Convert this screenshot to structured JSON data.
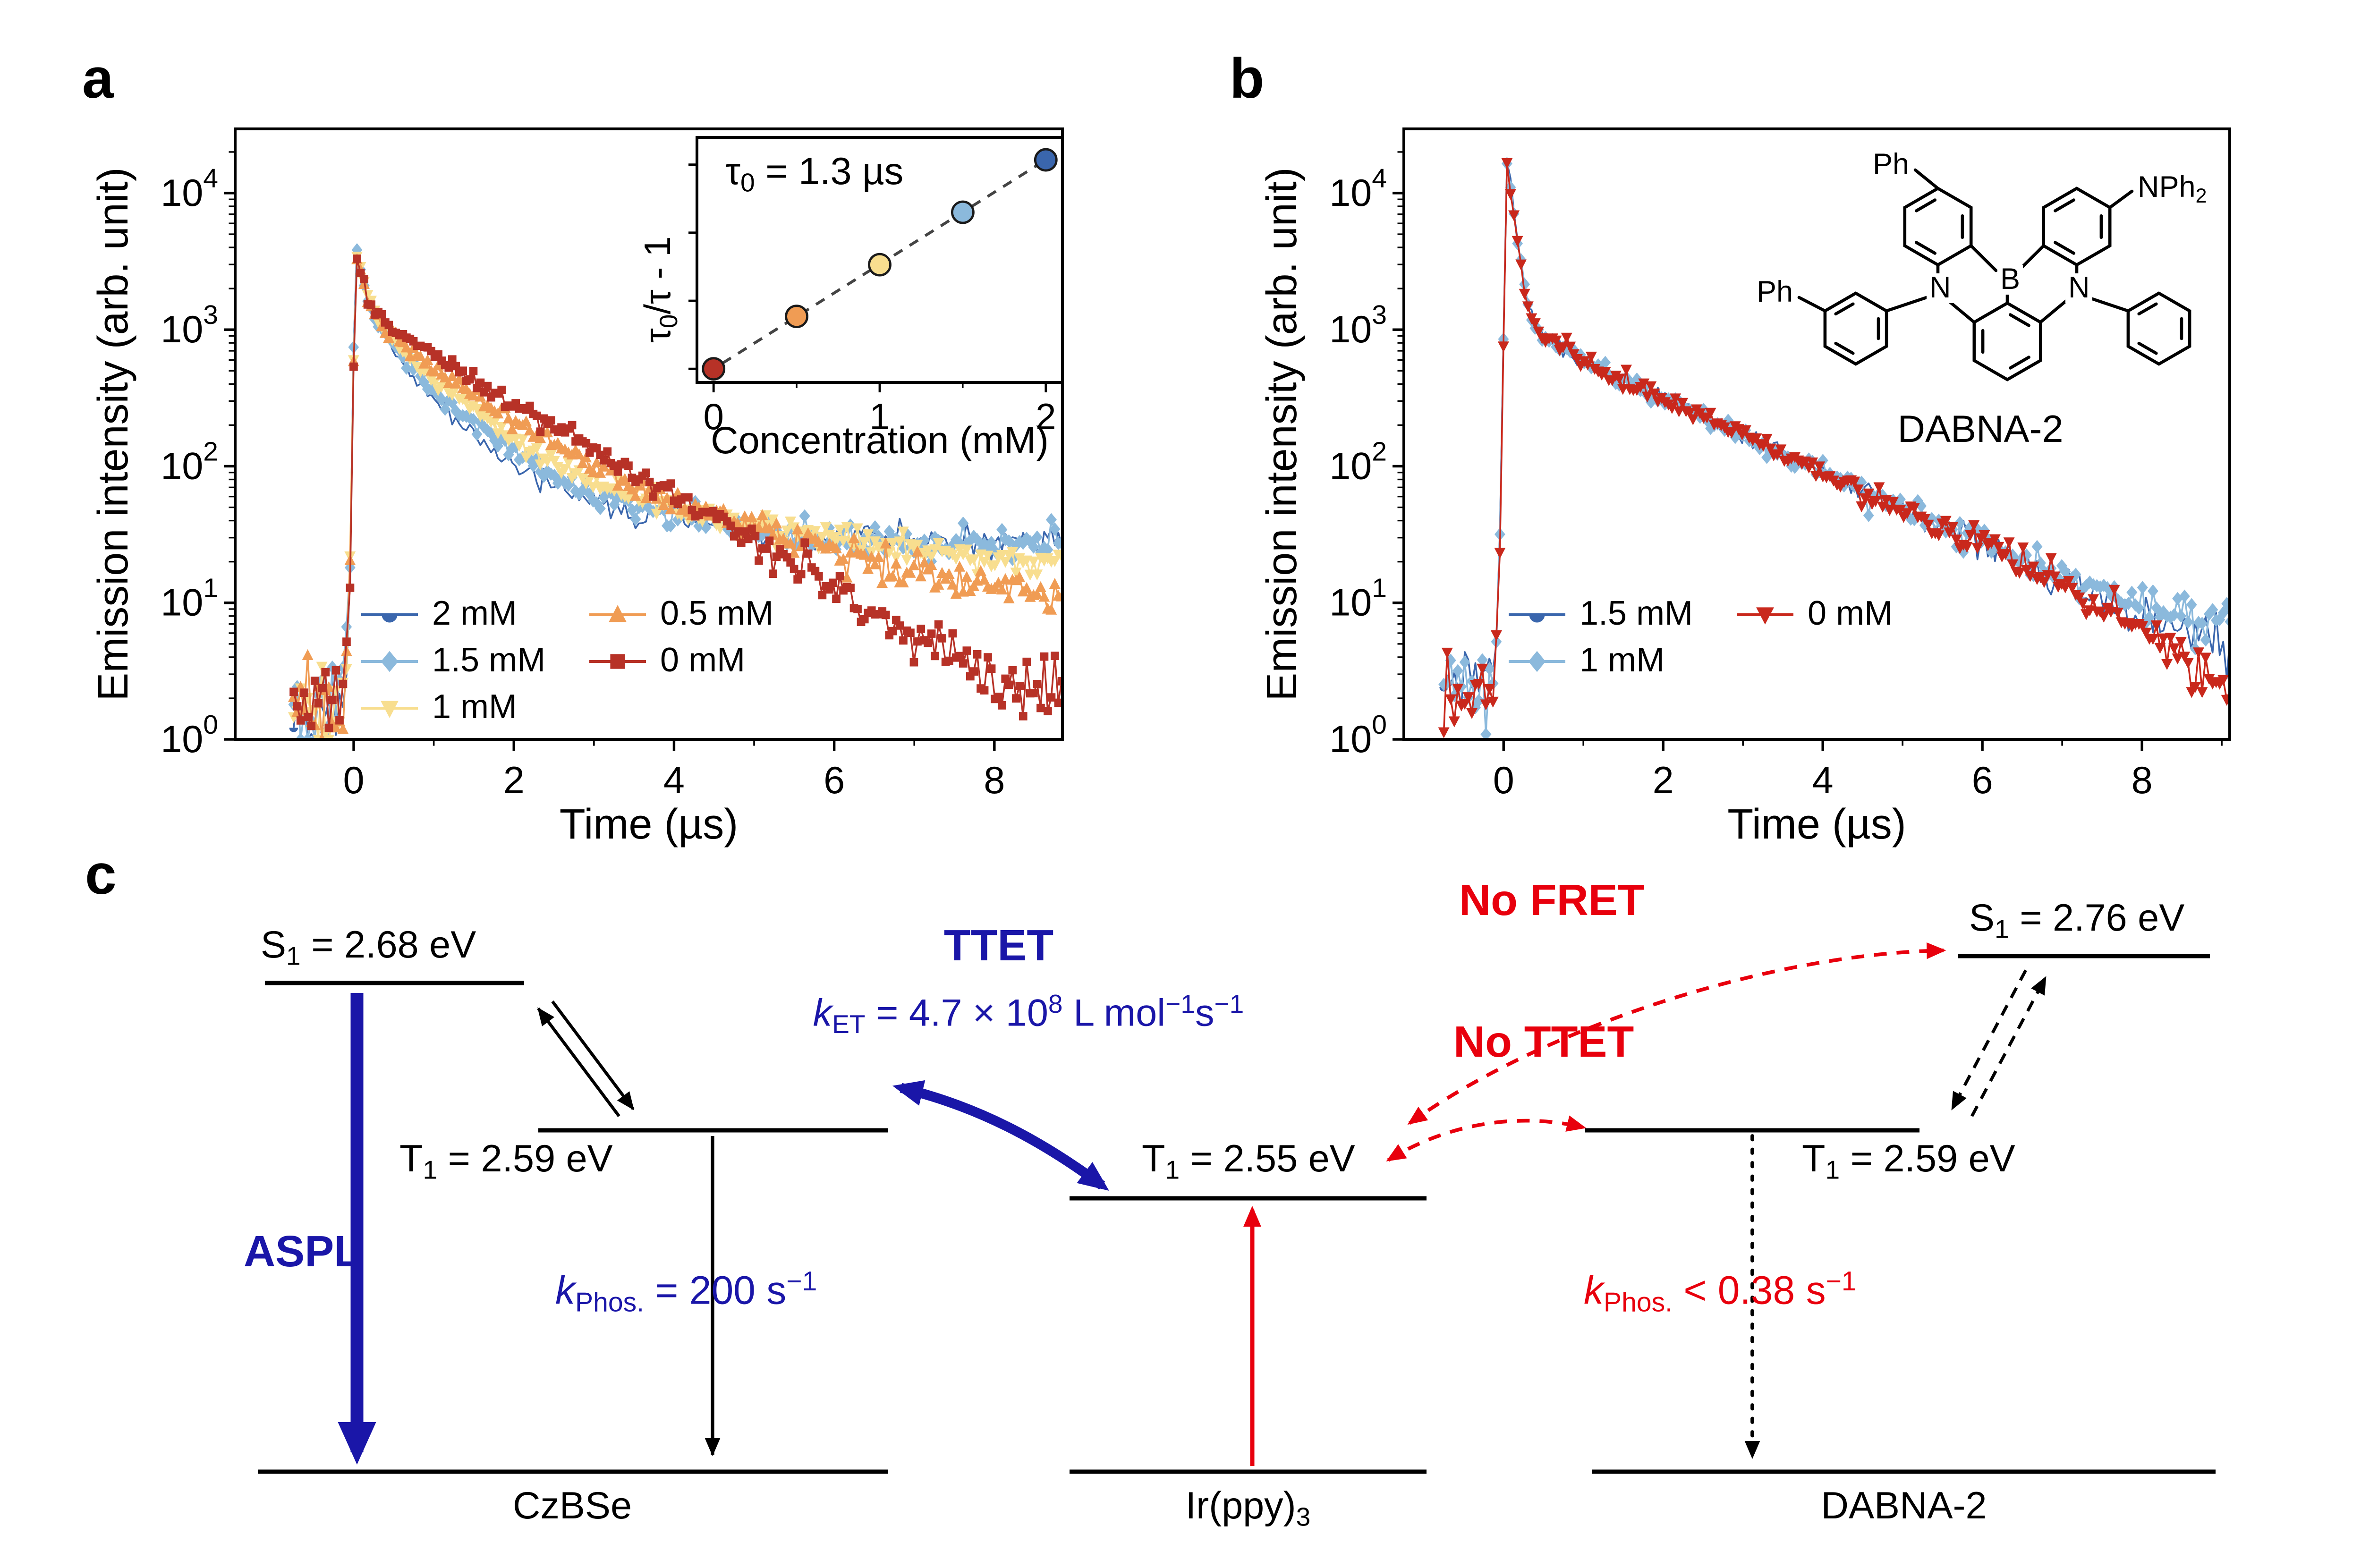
{
  "panels": {
    "a": "a",
    "b": "b",
    "c": "c"
  },
  "colors": {
    "navy": "#1A16A8",
    "red": "#E8000D",
    "blue": "#3A66AD",
    "light_blue": "#8BB9DC",
    "pale_yellow": "#F8DE8F",
    "orange": "#F09C54",
    "dark_red": "#B73227",
    "bright_red": "#C9281C",
    "black": "#000000"
  },
  "chart_data": [
    {
      "id": "chart-a",
      "panel": "a",
      "type": "decay",
      "xlabel": "Time (µs)",
      "ylabel": "Emission intensity (arb. unit)",
      "xticks": [
        0,
        2,
        4,
        6,
        8
      ],
      "xminor": [
        1,
        3,
        5,
        7,
        9
      ],
      "xlim": [
        -1.48,
        8.85
      ],
      "yscale": "log",
      "ylim_exp": [
        0,
        4.47
      ],
      "ytick_exponents": [
        0,
        1,
        2,
        3,
        4
      ],
      "legend_columns": [
        [
          0,
          1,
          2
        ],
        [
          3,
          4
        ]
      ],
      "series": [
        {
          "name": "2 mM",
          "color": "#3A66AD",
          "marker": "circle",
          "anchors": [
            [
              -0.75,
              1.8
            ],
            [
              -0.12,
              1.8
            ],
            [
              -0.05,
              12
            ],
            [
              0.02,
              4800
            ],
            [
              0.1,
              2500
            ],
            [
              0.2,
              1500
            ],
            [
              0.3,
              1080
            ],
            [
              0.5,
              700
            ],
            [
              0.7,
              480
            ],
            [
              1,
              300
            ],
            [
              1.5,
              165
            ],
            [
              2,
              100
            ],
            [
              2.5,
              72
            ],
            [
              3,
              55
            ],
            [
              3.5,
              47
            ],
            [
              4,
              42
            ],
            [
              4.5,
              38
            ],
            [
              5,
              34
            ],
            [
              6,
              30
            ],
            [
              7,
              29
            ],
            [
              8,
              28
            ],
            [
              9,
              29
            ],
            [
              9.22,
              30
            ],
            [
              9.3,
              1.5
            ]
          ]
        },
        {
          "name": "1.5 mM",
          "color": "#8BB9DC",
          "marker": "diamond",
          "anchors": [
            [
              -0.75,
              1.7
            ],
            [
              -0.12,
              1.7
            ],
            [
              -0.05,
              12
            ],
            [
              0.02,
              4500
            ],
            [
              0.1,
              2450
            ],
            [
              0.2,
              1520
            ],
            [
              0.3,
              1120
            ],
            [
              0.5,
              760
            ],
            [
              0.7,
              560
            ],
            [
              1,
              350
            ],
            [
              1.5,
              200
            ],
            [
              2,
              125
            ],
            [
              2.5,
              85
            ],
            [
              3,
              63
            ],
            [
              3.5,
              53
            ],
            [
              4,
              45
            ],
            [
              4.5,
              39
            ],
            [
              5,
              35
            ],
            [
              6,
              30
            ],
            [
              7,
              27
            ],
            [
              8,
              26
            ],
            [
              9,
              26
            ],
            [
              9.22,
              27
            ],
            [
              9.3,
              1.4
            ]
          ]
        },
        {
          "name": "1 mM",
          "color": "#F8DE8F",
          "marker": "triangle-down",
          "anchors": [
            [
              -0.75,
              1.7
            ],
            [
              -0.12,
              1.7
            ],
            [
              -0.05,
              12
            ],
            [
              0.02,
              4300
            ],
            [
              0.1,
              2400
            ],
            [
              0.2,
              1550
            ],
            [
              0.3,
              1160
            ],
            [
              0.5,
              820
            ],
            [
              0.7,
              640
            ],
            [
              1,
              430
            ],
            [
              1.5,
              260
            ],
            [
              2,
              160
            ],
            [
              2.5,
              105
            ],
            [
              3,
              76
            ],
            [
              3.5,
              61
            ],
            [
              4,
              50
            ],
            [
              4.5,
              42
            ],
            [
              5,
              36
            ],
            [
              6,
              29
            ],
            [
              7,
              25
            ],
            [
              8,
              22
            ],
            [
              9,
              21
            ],
            [
              9.22,
              21
            ],
            [
              9.3,
              1.4
            ]
          ]
        },
        {
          "name": "0.5 mM",
          "color": "#F09C54",
          "marker": "triangle-up",
          "anchors": [
            [
              -0.75,
              1.6
            ],
            [
              -0.12,
              1.6
            ],
            [
              -0.05,
              11
            ],
            [
              0.02,
              3900
            ],
            [
              0.1,
              2350
            ],
            [
              0.2,
              1580
            ],
            [
              0.3,
              1220
            ],
            [
              0.5,
              900
            ],
            [
              0.7,
              730
            ],
            [
              1,
              520
            ],
            [
              1.5,
              330
            ],
            [
              2,
              215
            ],
            [
              2.5,
              145
            ],
            [
              3,
              102
            ],
            [
              3.5,
              76
            ],
            [
              4,
              57
            ],
            [
              4.5,
              44
            ],
            [
              5,
              34
            ],
            [
              5.5,
              28
            ],
            [
              6,
              23
            ],
            [
              7,
              17
            ],
            [
              8,
              13
            ],
            [
              9,
              11
            ],
            [
              9.22,
              11
            ],
            [
              9.3,
              1.3
            ]
          ]
        },
        {
          "name": "0 mM",
          "color": "#B73227",
          "marker": "square",
          "anchors": [
            [
              -0.75,
              1.6
            ],
            [
              -0.12,
              1.6
            ],
            [
              -0.05,
              11
            ],
            [
              0.02,
              3300
            ],
            [
              0.1,
              2250
            ],
            [
              0.2,
              1600
            ],
            [
              0.3,
              1300
            ],
            [
              0.5,
              1020
            ],
            [
              0.7,
              850
            ],
            [
              1,
              660
            ],
            [
              1.5,
              430
            ],
            [
              2,
              290
            ],
            [
              2.5,
              195
            ],
            [
              3,
              130
            ],
            [
              3.5,
              88
            ],
            [
              4,
              60
            ],
            [
              4.5,
              41
            ],
            [
              5,
              28
            ],
            [
              5.5,
              19
            ],
            [
              6,
              12.5
            ],
            [
              6.5,
              8.5
            ],
            [
              7,
              5.5
            ],
            [
              7.5,
              3.6
            ],
            [
              8,
              2.6
            ],
            [
              8.5,
              2.0
            ],
            [
              9,
              1.6
            ],
            [
              9.3,
              1.1
            ]
          ]
        }
      ]
    },
    {
      "id": "quenching-inset",
      "type": "scatter",
      "xlabel": "Concentration (mM)",
      "ylabel_html": "τ<sub>0</sub>/τ - 1",
      "annotation_html": "τ<sub>0</sub> = 1.3 µs",
      "tau0_us": 1.3,
      "xlim": [
        -0.1,
        2.1
      ],
      "xticks": [
        0,
        1,
        2
      ],
      "xminor": [
        0.5,
        1.5
      ],
      "ylim": [
        -0.2,
        3.4
      ],
      "yticks": [
        0,
        1,
        2,
        3
      ],
      "points": [
        {
          "x": 0.0,
          "y": 0.0,
          "color": "#B73227"
        },
        {
          "x": 0.5,
          "y": 0.77,
          "color": "#F09C54"
        },
        {
          "x": 1.0,
          "y": 1.53,
          "color": "#F8DE8F"
        },
        {
          "x": 1.5,
          "y": 2.3,
          "color": "#8BB9DC"
        },
        {
          "x": 2.0,
          "y": 3.07,
          "color": "#3A66AD"
        }
      ],
      "fit": {
        "slope": 1.535,
        "intercept": 0.0,
        "color": "#444444",
        "style": "dashed"
      }
    },
    {
      "id": "chart-b",
      "panel": "b",
      "type": "decay",
      "xlabel": "Time (µs)",
      "ylabel": "Emission intensity (arb. unit)",
      "xticks": [
        0,
        2,
        4,
        6,
        8
      ],
      "xminor": [
        1,
        3,
        5,
        7,
        9
      ],
      "xlim": [
        -1.25,
        9.1
      ],
      "yscale": "log",
      "ylim_exp": [
        0,
        4.47
      ],
      "ytick_exponents": [
        0,
        1,
        2,
        3,
        4
      ],
      "legend_columns": [
        [
          0,
          1
        ],
        [
          2
        ]
      ],
      "series": [
        {
          "name": "1.5 mM",
          "color": "#3A66AD",
          "marker": "circle",
          "anchors": [
            [
              -0.75,
              2.2
            ],
            [
              -0.12,
              2.2
            ],
            [
              -0.05,
              25
            ],
            [
              0.04,
              17000
            ],
            [
              0.1,
              10000
            ],
            [
              0.18,
              4200
            ],
            [
              0.28,
              1700
            ],
            [
              0.4,
              1060
            ],
            [
              0.6,
              810
            ],
            [
              1,
              590
            ],
            [
              1.5,
              432
            ],
            [
              2,
              318
            ],
            [
              2.5,
              232
            ],
            [
              3,
              171
            ],
            [
              3.5,
              127
            ],
            [
              4,
              94
            ],
            [
              4.5,
              69
            ],
            [
              5,
              51
            ],
            [
              5.5,
              37.5
            ],
            [
              6,
              27.5
            ],
            [
              6.5,
              20.5
            ],
            [
              7,
              15
            ],
            [
              7.5,
              11.2
            ],
            [
              8,
              8.5
            ],
            [
              8.5,
              6.5
            ],
            [
              9,
              5.2
            ],
            [
              9.22,
              4.8
            ],
            [
              9.3,
              1.3
            ]
          ]
        },
        {
          "name": "1 mM",
          "color": "#8BB9DC",
          "marker": "diamond",
          "anchors": [
            [
              -0.75,
              2.3
            ],
            [
              -0.12,
              2.3
            ],
            [
              -0.05,
              25
            ],
            [
              0.04,
              16500
            ],
            [
              0.1,
              9800
            ],
            [
              0.18,
              4150
            ],
            [
              0.28,
              1690
            ],
            [
              0.4,
              1050
            ],
            [
              0.6,
              805
            ],
            [
              1,
              585
            ],
            [
              1.5,
              428
            ],
            [
              2,
              315
            ],
            [
              2.5,
              230
            ],
            [
              3,
              170
            ],
            [
              3.5,
              126
            ],
            [
              4,
              93
            ],
            [
              4.5,
              68
            ],
            [
              5,
              50
            ],
            [
              5.5,
              37
            ],
            [
              6,
              27.5
            ],
            [
              6.5,
              21
            ],
            [
              7,
              16
            ],
            [
              7.5,
              12.5
            ],
            [
              8,
              9.5
            ],
            [
              8.5,
              7.8
            ],
            [
              9,
              6.6
            ],
            [
              9.22,
              6.2
            ],
            [
              9.3,
              1.5
            ]
          ]
        },
        {
          "name": "0 mM",
          "color": "#C9281C",
          "marker": "triangle-down",
          "anchors": [
            [
              -0.75,
              2.0
            ],
            [
              -0.12,
              2.0
            ],
            [
              -0.05,
              22
            ],
            [
              0.04,
              16000
            ],
            [
              0.1,
              9500
            ],
            [
              0.18,
              4100
            ],
            [
              0.28,
              1680
            ],
            [
              0.4,
              1045
            ],
            [
              0.6,
              800
            ],
            [
              1,
              582
            ],
            [
              1.5,
              425
            ],
            [
              2,
              312
            ],
            [
              2.5,
              228
            ],
            [
              3,
              168
            ],
            [
              3.5,
              124
            ],
            [
              4,
              91
            ],
            [
              4.5,
              66
            ],
            [
              5,
              48
            ],
            [
              5.5,
              35
            ],
            [
              6,
              25.5
            ],
            [
              6.5,
              18.5
            ],
            [
              7,
              13.2
            ],
            [
              7.5,
              9.3
            ],
            [
              8,
              6.3
            ],
            [
              8.5,
              4.3
            ],
            [
              9,
              2.9
            ],
            [
              9.25,
              2.4
            ],
            [
              9.3,
              1.0
            ]
          ]
        }
      ]
    }
  ],
  "structure": {
    "caption": "DABNA-2",
    "atom_b": "B",
    "atom_n_left": "N",
    "atom_n_right": "N",
    "ph_top": "Ph",
    "ph_left": "Ph",
    "nph2_html": "NPh<sub>2</sub>"
  },
  "diagram": {
    "czbse": {
      "s1_html": "S<sub>1</sub> = 2.68 eV",
      "t1_html": "T<sub>1</sub> = 2.59 eV",
      "aspl": "ASPL",
      "kphos_html": "<i>k</i><sub>Phos.</sub> = 200 s<sup>−1</sup>",
      "name": "CzBSe"
    },
    "ir": {
      "t1_html": "T<sub>1</sub> = 2.55 eV",
      "name_html": "Ir(ppy)<sub>3</sub>"
    },
    "dabna": {
      "s1_html": "S<sub>1</sub> = 2.76 eV",
      "t1_html": "T<sub>1</sub> = 2.59 eV",
      "kphos_html": "<i>k</i><sub>Phos.</sub> &lt; 0.38 s<sup>−1</sup>",
      "name": "DABNA-2"
    },
    "ttet": "TTET",
    "ket_html": "<i>k</i><sub>ET</sub> = 4.7 × 10<sup>8</sup> L mol<sup>−1</sup>s<sup>−1</sup>",
    "no_fret": "No FRET",
    "no_ttet": "No TTET"
  }
}
